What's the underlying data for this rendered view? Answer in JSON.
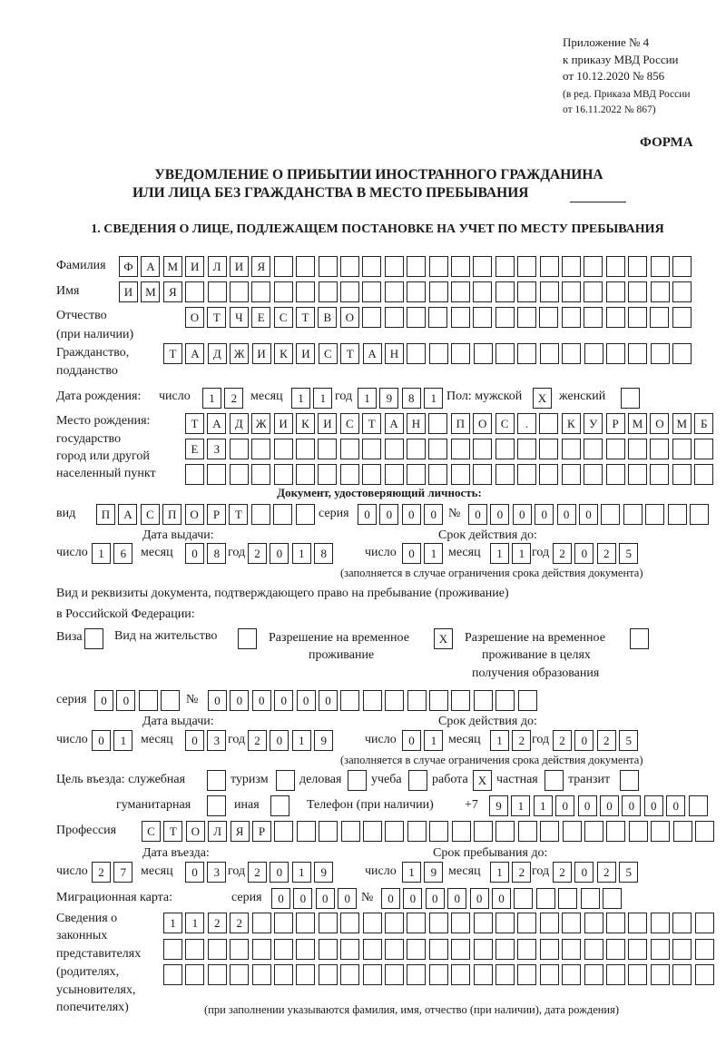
{
  "header": {
    "appendix": "Приложение № 4",
    "order": "к приказу МВД России",
    "order_date": "от 10.12.2020 № 856",
    "revision_1": "(в ред. Приказа МВД России",
    "revision_2": "от 16.11.2022 № 867)",
    "form_label": "ФОРМА"
  },
  "title": {
    "line1": "УВЕДОМЛЕНИЕ О ПРИБЫТИИ ИНОСТРАННОГО ГРАЖДАНИНА",
    "line2": "ИЛИ ЛИЦА БЕЗ ГРАЖДАНСТВА В МЕСТО ПРЕБЫВАНИЯ"
  },
  "section1": "1. СВЕДЕНИЯ О ЛИЦЕ, ПОДЛЕЖАЩЕМ ПОСТАНОВКЕ НА УЧЕТ ПО МЕСТУ ПРЕБЫВАНИЯ",
  "labels": {
    "surname": "Фамилия",
    "name": "Имя",
    "patronymic": "Отчество",
    "patronymic_note": "(при наличии)",
    "citizenship": "Гражданство,",
    "citizenship_2": "подданство",
    "birth_date": "Дата рождения:",
    "day": "число",
    "month": "месяц",
    "year": "год",
    "sex": "Пол: мужской",
    "female": "женский",
    "birth_place": "Место рождения:",
    "birth_place_2": "государство",
    "birth_place_3": "город или другой",
    "birth_place_4": "населенный пункт",
    "id_doc": "Документ, удостоверяющий личность:",
    "kind": "вид",
    "series": "серия",
    "number": "№",
    "issue_date": "Дата выдачи:",
    "valid_until": "Срок действия до:",
    "validity_note": "(заполняется в случае ограничения срока действия документа)",
    "residence_doc_1": "Вид и реквизиты документа, подтверждающего право на пребывание (проживание)",
    "residence_doc_2": "в Российской Федерации:",
    "visa": "Виза",
    "residence_permit": "Вид на жительство",
    "temp_permit_1": "Разрешение на временное",
    "temp_permit_2": "проживание",
    "temp_edu_1": "Разрешение на временное",
    "temp_edu_2": "проживание в целях",
    "temp_edu_3": "получения образования",
    "purpose": "Цель въезда: служебная",
    "tourism": "туризм",
    "business": "деловая",
    "study": "учеба",
    "work": "работа",
    "private": "частная",
    "transit": "транзит",
    "humanitarian": "гуманитарная",
    "other": "иная",
    "phone": "Телефон (при наличии)",
    "phone_prefix": "+7",
    "profession": "Профессия",
    "entry_date": "Дата въезда:",
    "stay_until": "Срок пребывания до:",
    "migration_card": "Миграционная карта:",
    "reps_1": "Сведения о",
    "reps_2": "законных",
    "reps_3": "представителях",
    "reps_4": "(родителях,",
    "reps_5": "усыновителях,",
    "reps_6": "попечителях)",
    "reps_note": "(при заполнении указываются фамилия, имя, отчество (при наличии), дата рождения)"
  },
  "person": {
    "surname": "ФАМИЛИЯ",
    "name": "ИМЯ",
    "patronymic": "ОТЧЕСТВО",
    "citizenship": "ТАДЖИКИСТАН",
    "birth_day": "12",
    "birth_month": "11",
    "birth_year": "1981",
    "sex_male": "X",
    "sex_female": "",
    "birth_place_1": "ТАДЖИКИСТАН ПОС. КУРМОМБ",
    "birth_place_2": "ЕЗ",
    "birth_place_3": ""
  },
  "id_document": {
    "kind": "ПАСПОРТ",
    "series": "0000",
    "number": "000000",
    "issue_day": "16",
    "issue_month": "08",
    "issue_year": "2018",
    "valid_day": "01",
    "valid_month": "11",
    "valid_year": "2025"
  },
  "residence_document": {
    "visa": "",
    "residence_permit": "",
    "temp_permit": "X",
    "temp_edu": "",
    "series": "00",
    "number": "000000",
    "issue_day": "01",
    "issue_month": "03",
    "issue_year": "2019",
    "valid_day": "01",
    "valid_month": "12",
    "valid_year": "2025"
  },
  "purpose": {
    "official": "",
    "tourism": "",
    "business": "",
    "study": "",
    "work": "X",
    "private": "",
    "transit": "",
    "humanitarian": "",
    "other": ""
  },
  "phone": "911000000",
  "profession": "СТОЛЯР",
  "entry": {
    "entry_day": "27",
    "entry_month": "03",
    "entry_year": "2019",
    "stay_day": "19",
    "stay_month": "12",
    "stay_year": "2025"
  },
  "migration_card": {
    "series": "0000",
    "number": "000000"
  },
  "representatives": {
    "line1": "1122",
    "line2": "",
    "line3": ""
  }
}
